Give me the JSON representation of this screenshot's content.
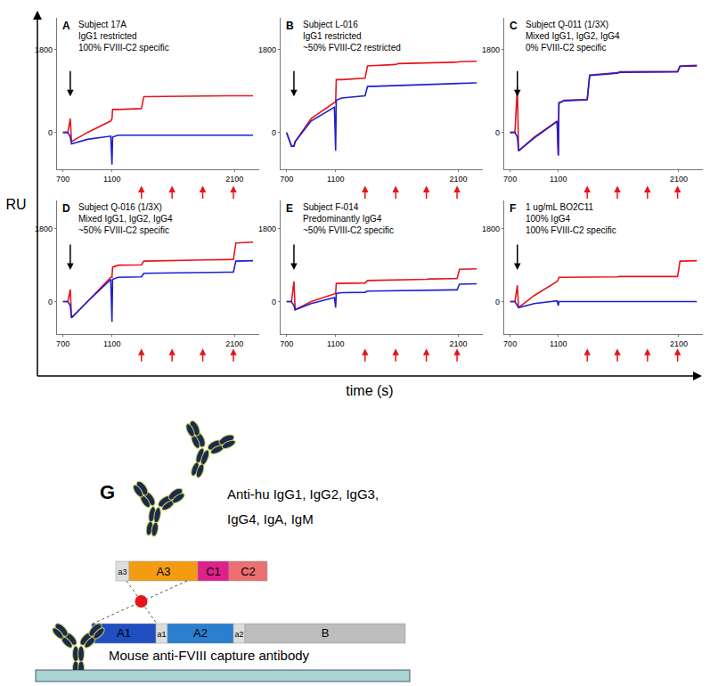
{
  "chart_data": [
    {
      "type": "line",
      "label": "A",
      "annotations": [
        "Subject 17A",
        "IgG1 restricted",
        "100% FVIII-C2 specific"
      ],
      "x": [
        700,
        740,
        760,
        770,
        900,
        1090,
        1100,
        1105,
        1150,
        1340,
        1360,
        1590,
        1610,
        1840,
        1860,
        2090,
        2110,
        2250
      ],
      "series": [
        {
          "color": "#e8141c",
          "values": [
            0,
            0,
            300,
            -200,
            0,
            250,
            300,
            500,
            500,
            520,
            780,
            790,
            790,
            800,
            800,
            800,
            800,
            800
          ]
        },
        {
          "color": "#1f1fd0",
          "values": [
            0,
            0,
            -100,
            -250,
            -150,
            -80,
            -700,
            -100,
            -60,
            -60,
            -60,
            -60,
            -60,
            -60,
            -60,
            -60,
            -60,
            -60
          ]
        }
      ],
      "xlim": [
        650,
        2300
      ],
      "xticks": [
        700,
        1100,
        2100
      ],
      "ylim": [
        -800,
        2500
      ],
      "yticks": [
        0,
        1800
      ],
      "capture_arrow": 760,
      "injection_arrows": [
        1340,
        1590,
        1840,
        2090
      ]
    },
    {
      "type": "line",
      "label": "B",
      "annotations": [
        "Subject L-016",
        "IgG1 restricted",
        "~50% FVIII-C2 restricted"
      ],
      "x": [
        700,
        740,
        760,
        770,
        900,
        1090,
        1100,
        1105,
        1150,
        1340,
        1360,
        1590,
        1610,
        1840,
        1860,
        2090,
        2110,
        2250
      ],
      "series": [
        {
          "color": "#e8141c",
          "values": [
            0,
            -300,
            -300,
            -200,
            300,
            650,
            650,
            1150,
            1150,
            1180,
            1450,
            1480,
            1500,
            1510,
            1520,
            1530,
            1540,
            1550
          ]
        },
        {
          "color": "#1f1fd0",
          "values": [
            0,
            -300,
            -300,
            -200,
            250,
            550,
            -400,
            700,
            750,
            800,
            1000,
            1020,
            1030,
            1040,
            1050,
            1060,
            1070,
            1080
          ]
        }
      ],
      "xlim": [
        650,
        2300
      ],
      "xticks": [
        700,
        1100,
        2100
      ],
      "ylim": [
        -800,
        2500
      ],
      "yticks": [
        0,
        1800
      ],
      "capture_arrow": 760,
      "injection_arrows": [
        1340,
        1590,
        1840,
        2090
      ]
    },
    {
      "type": "line",
      "label": "C",
      "annotations": [
        "Subject Q-011 (1/3X)",
        "Mixed IgG1, IgG2, IgG4",
        "0% FVIII-C2 specific"
      ],
      "x": [
        700,
        740,
        760,
        770,
        900,
        1090,
        1100,
        1105,
        1150,
        1340,
        1360,
        1590,
        1610,
        1840,
        1860,
        2090,
        2110,
        2250
      ],
      "series": [
        {
          "color": "#e8141c",
          "values": [
            0,
            0,
            1000,
            -400,
            -100,
            250,
            -500,
            650,
            700,
            720,
            1250,
            1300,
            1320,
            1320,
            1330,
            1330,
            1450,
            1460
          ]
        },
        {
          "color": "#1f1fd0",
          "values": [
            0,
            0,
            -100,
            -400,
            -120,
            240,
            -500,
            640,
            690,
            710,
            1240,
            1290,
            1310,
            1310,
            1320,
            1320,
            1440,
            1450
          ]
        }
      ],
      "xlim": [
        650,
        2300
      ],
      "xticks": [
        700,
        1100,
        2100
      ],
      "ylim": [
        -800,
        2500
      ],
      "yticks": [
        0,
        1800
      ],
      "capture_arrow": 760,
      "injection_arrows": [
        1340,
        1590,
        1840,
        2090
      ]
    },
    {
      "type": "line",
      "label": "D",
      "annotations": [
        "Subject Q-016 (1/3X)",
        "Mixed IgG1, IgG2, IgG4",
        "~50% FVIII-C2 specific"
      ],
      "x": [
        700,
        740,
        760,
        770,
        900,
        1090,
        1100,
        1105,
        1150,
        1340,
        1360,
        1590,
        1610,
        1840,
        1860,
        2090,
        2110,
        2250
      ],
      "series": [
        {
          "color": "#e8141c",
          "values": [
            0,
            0,
            300,
            -400,
            0,
            600,
            600,
            850,
            900,
            910,
            1000,
            1020,
            1020,
            1030,
            1030,
            1040,
            1450,
            1470
          ]
        },
        {
          "color": "#1f1fd0",
          "values": [
            0,
            0,
            -100,
            -400,
            0,
            550,
            -500,
            550,
            600,
            610,
            700,
            710,
            710,
            720,
            720,
            730,
            1000,
            1010
          ]
        }
      ],
      "xlim": [
        650,
        2300
      ],
      "xticks": [
        700,
        1100,
        2100
      ],
      "ylim": [
        -800,
        2500
      ],
      "yticks": [
        0,
        1800
      ],
      "capture_arrow": 760,
      "injection_arrows": [
        1340,
        1590,
        1840,
        2090
      ]
    },
    {
      "type": "line",
      "label": "E",
      "annotations": [
        "Subject F-014",
        "Predominantly IgG4",
        "~50% FVIII-C2 specific"
      ],
      "x": [
        700,
        740,
        760,
        770,
        900,
        1090,
        1100,
        1105,
        1150,
        1340,
        1360,
        1590,
        1610,
        1840,
        1860,
        2090,
        2110,
        2250
      ],
      "series": [
        {
          "color": "#e8141c",
          "values": [
            0,
            0,
            500,
            -200,
            0,
            200,
            200,
            450,
            450,
            460,
            520,
            530,
            540,
            550,
            560,
            570,
            800,
            810
          ]
        },
        {
          "color": "#1f1fd0",
          "values": [
            0,
            0,
            -100,
            -200,
            -50,
            100,
            -150,
            200,
            220,
            230,
            260,
            270,
            270,
            280,
            280,
            290,
            430,
            440
          ]
        }
      ],
      "xlim": [
        650,
        2300
      ],
      "xticks": [
        700,
        1100,
        2100
      ],
      "ylim": [
        -800,
        2500
      ],
      "yticks": [
        0,
        1800
      ],
      "capture_arrow": 760,
      "injection_arrows": [
        1340,
        1590,
        1840,
        2090
      ]
    },
    {
      "type": "line",
      "label": "F",
      "annotations": [
        "1 ug/mL BO2C11",
        "100% IgG4",
        "100% FVIII-C2 specific"
      ],
      "x": [
        700,
        740,
        760,
        770,
        900,
        1090,
        1100,
        1105,
        1150,
        1340,
        1360,
        1590,
        1610,
        1840,
        1860,
        2090,
        2110,
        2250
      ],
      "series": [
        {
          "color": "#e8141c",
          "values": [
            0,
            0,
            400,
            -150,
            150,
            500,
            550,
            600,
            600,
            600,
            610,
            610,
            620,
            620,
            620,
            620,
            1000,
            1010
          ]
        },
        {
          "color": "#1f1fd0",
          "values": [
            0,
            0,
            -100,
            -150,
            -50,
            20,
            -100,
            0,
            0,
            0,
            0,
            0,
            0,
            0,
            0,
            0,
            0,
            0
          ]
        }
      ],
      "xlim": [
        650,
        2300
      ],
      "xticks": [
        700,
        1100,
        2100
      ],
      "ylim": [
        -800,
        2500
      ],
      "yticks": [
        0,
        1800
      ],
      "capture_arrow": 760,
      "injection_arrows": [
        1340,
        1590,
        1840,
        2090
      ]
    }
  ],
  "axes": {
    "y_label": "RU",
    "x_label": "time (s)"
  },
  "diagram": {
    "label": "G",
    "detecting_antibodies": [
      "Anti-hu IgG1, IgG2, IgG3,",
      "IgG4, IgA, IgM"
    ],
    "light_chain": [
      "a3",
      "A3",
      "C1",
      "C2"
    ],
    "heavy_chain": [
      "A1",
      "a1",
      "A2",
      "a2",
      "B"
    ],
    "capture": "Mouse anti-FVIII capture antibody"
  }
}
